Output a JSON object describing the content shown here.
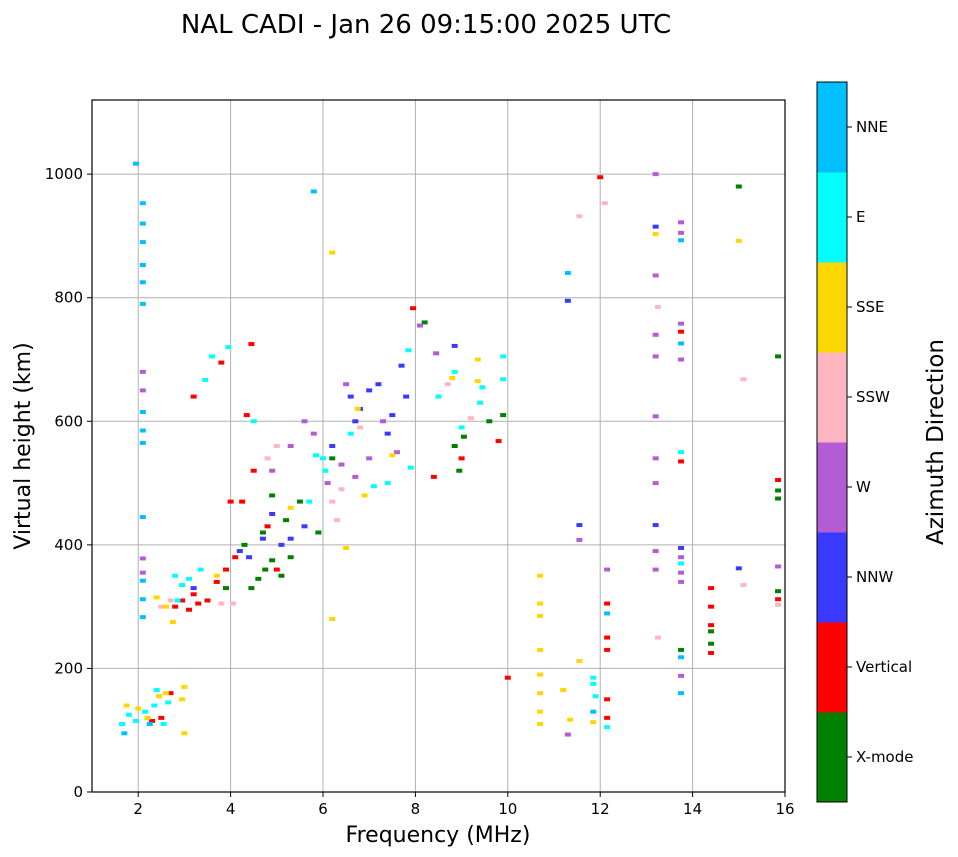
{
  "chart_data": {
    "type": "scatter",
    "title": "NAL CADI - Jan 26 09:15:00 2025 UTC",
    "xlabel": "Frequency (MHz)",
    "ylabel": "Virtual height (km)",
    "xlim": [
      1,
      16
    ],
    "ylim": [
      0,
      1120
    ],
    "xticks": [
      2,
      4,
      6,
      8,
      10,
      12,
      14,
      16
    ],
    "yticks": [
      0,
      200,
      400,
      600,
      800,
      1000
    ],
    "grid": true,
    "colorbar": {
      "label": "Azimuth Direction",
      "categories": [
        {
          "name": "X-mode",
          "color": "#008000"
        },
        {
          "name": "Vertical",
          "color": "#ff0000"
        },
        {
          "name": "NNW",
          "color": "#3a3aff"
        },
        {
          "name": "W",
          "color": "#b45cd6"
        },
        {
          "name": "SSW",
          "color": "#ffb6c1"
        },
        {
          "name": "SSE",
          "color": "#ffd700"
        },
        {
          "name": "E",
          "color": "#00ffff"
        },
        {
          "name": "NNE",
          "color": "#00bfff"
        }
      ]
    },
    "series": [
      {
        "name": "X-mode",
        "points": [
          [
            4.45,
            330
          ],
          [
            4.6,
            345
          ],
          [
            4.75,
            360
          ],
          [
            4.9,
            375
          ],
          [
            5.1,
            350
          ],
          [
            5.3,
            380
          ],
          [
            4.3,
            400
          ],
          [
            4.7,
            420
          ],
          [
            5.2,
            440
          ],
          [
            5.5,
            470
          ],
          [
            4.9,
            480
          ],
          [
            6.2,
            540
          ],
          [
            8.85,
            560
          ],
          [
            8.95,
            520
          ],
          [
            9.05,
            575
          ],
          [
            9.6,
            600
          ],
          [
            9.9,
            610
          ],
          [
            8.2,
            760
          ],
          [
            13.75,
            230
          ],
          [
            15,
            980
          ],
          [
            15.85,
            705
          ],
          [
            15.85,
            475
          ],
          [
            15.85,
            488
          ],
          [
            15.85,
            325
          ],
          [
            5.9,
            420
          ],
          [
            3.9,
            330
          ],
          [
            14.4,
            240
          ],
          [
            14.4,
            260
          ]
        ]
      },
      {
        "name": "Vertical",
        "points": [
          [
            2.8,
            300
          ],
          [
            2.95,
            310
          ],
          [
            3.1,
            295
          ],
          [
            3.3,
            305
          ],
          [
            3.5,
            310
          ],
          [
            3.2,
            320
          ],
          [
            3.7,
            340
          ],
          [
            3.9,
            360
          ],
          [
            4.1,
            380
          ],
          [
            4.25,
            470
          ],
          [
            4.5,
            520
          ],
          [
            4.0,
            470
          ],
          [
            4.35,
            610
          ],
          [
            4.45,
            725
          ],
          [
            3.8,
            695
          ],
          [
            3.2,
            640
          ],
          [
            2.3,
            115
          ],
          [
            2.5,
            120
          ],
          [
            2.7,
            160
          ],
          [
            8.4,
            510
          ],
          [
            9.0,
            540
          ],
          [
            9.8,
            568
          ],
          [
            10.0,
            185
          ],
          [
            12.0,
            995
          ],
          [
            12.15,
            305
          ],
          [
            12.15,
            250
          ],
          [
            12.15,
            230
          ],
          [
            12.15,
            150
          ],
          [
            12.15,
            120
          ],
          [
            13.75,
            535
          ],
          [
            13.75,
            745
          ],
          [
            14.4,
            330
          ],
          [
            14.4,
            300
          ],
          [
            14.4,
            270
          ],
          [
            14.4,
            225
          ],
          [
            15.85,
            505
          ],
          [
            15.85,
            312
          ],
          [
            7.95,
            783
          ],
          [
            5.0,
            360
          ],
          [
            4.8,
            430
          ]
        ]
      },
      {
        "name": "NNW",
        "points": [
          [
            3.2,
            330
          ],
          [
            4.4,
            380
          ],
          [
            4.2,
            390
          ],
          [
            4.7,
            410
          ],
          [
            5.1,
            400
          ],
          [
            5.6,
            430
          ],
          [
            6.6,
            640
          ],
          [
            6.8,
            620
          ],
          [
            7.0,
            650
          ],
          [
            7.2,
            660
          ],
          [
            7.5,
            610
          ],
          [
            7.8,
            640
          ],
          [
            6.7,
            600
          ],
          [
            7.4,
            580
          ],
          [
            11.3,
            795
          ],
          [
            11.55,
            432
          ],
          [
            13.2,
            432
          ],
          [
            13.2,
            915
          ],
          [
            13.75,
            395
          ],
          [
            15.0,
            362
          ],
          [
            4.9,
            450
          ],
          [
            5.3,
            410
          ],
          [
            8.85,
            722
          ],
          [
            7.7,
            690
          ],
          [
            6.2,
            560
          ]
        ]
      },
      {
        "name": "W",
        "points": [
          [
            2.1,
            680
          ],
          [
            2.1,
            650
          ],
          [
            2.1,
            378
          ],
          [
            2.1,
            355
          ],
          [
            5.3,
            560
          ],
          [
            5.6,
            600
          ],
          [
            5.8,
            580
          ],
          [
            6.1,
            500
          ],
          [
            6.4,
            530
          ],
          [
            6.7,
            510
          ],
          [
            7.0,
            540
          ],
          [
            7.3,
            600
          ],
          [
            7.6,
            550
          ],
          [
            4.9,
            520
          ],
          [
            6.5,
            660
          ],
          [
            8.1,
            755
          ],
          [
            8.45,
            710
          ],
          [
            11.3,
            93
          ],
          [
            11.55,
            408
          ],
          [
            12.15,
            360
          ],
          [
            13.2,
            1000
          ],
          [
            13.2,
            836
          ],
          [
            13.2,
            740
          ],
          [
            13.2,
            705
          ],
          [
            13.2,
            608
          ],
          [
            13.2,
            540
          ],
          [
            13.2,
            500
          ],
          [
            13.2,
            390
          ],
          [
            13.2,
            360
          ],
          [
            13.75,
            922
          ],
          [
            13.75,
            905
          ],
          [
            13.75,
            758
          ],
          [
            13.75,
            700
          ],
          [
            13.75,
            380
          ],
          [
            13.75,
            355
          ],
          [
            13.75,
            340
          ],
          [
            13.75,
            188
          ],
          [
            15.85,
            365
          ]
        ]
      },
      {
        "name": "SSW",
        "points": [
          [
            2.5,
            300
          ],
          [
            2.7,
            310
          ],
          [
            6.3,
            440
          ],
          [
            6.2,
            470
          ],
          [
            6.4,
            490
          ],
          [
            5.0,
            560
          ],
          [
            4.8,
            540
          ],
          [
            6.8,
            590
          ],
          [
            8.7,
            660
          ],
          [
            9.2,
            605
          ],
          [
            11.55,
            932
          ],
          [
            12.1,
            953
          ],
          [
            13.25,
            785
          ],
          [
            13.25,
            250
          ],
          [
            15.1,
            668
          ],
          [
            15.1,
            335
          ],
          [
            15.85,
            303
          ],
          [
            3.8,
            305
          ],
          [
            4.05,
            305
          ]
        ]
      },
      {
        "name": "SSE",
        "points": [
          [
            1.75,
            140
          ],
          [
            2.0,
            135
          ],
          [
            2.2,
            120
          ],
          [
            2.45,
            155
          ],
          [
            2.6,
            160
          ],
          [
            2.95,
            150
          ],
          [
            3.0,
            170
          ],
          [
            3.0,
            95
          ],
          [
            2.4,
            315
          ],
          [
            2.6,
            300
          ],
          [
            2.75,
            275
          ],
          [
            6.2,
            873
          ],
          [
            6.2,
            280
          ],
          [
            6.5,
            395
          ],
          [
            6.75,
            620
          ],
          [
            6.9,
            480
          ],
          [
            7.5,
            545
          ],
          [
            8.8,
            670
          ],
          [
            9.35,
            700
          ],
          [
            9.35,
            665
          ],
          [
            10.7,
            350
          ],
          [
            10.7,
            305
          ],
          [
            10.7,
            285
          ],
          [
            10.7,
            230
          ],
          [
            10.7,
            190
          ],
          [
            10.7,
            160
          ],
          [
            10.7,
            130
          ],
          [
            10.7,
            110
          ],
          [
            11.2,
            165
          ],
          [
            11.35,
            117
          ],
          [
            11.55,
            212
          ],
          [
            11.85,
            113
          ],
          [
            13.2,
            903
          ],
          [
            15.0,
            892
          ],
          [
            3.7,
            350
          ],
          [
            5.3,
            460
          ]
        ]
      },
      {
        "name": "E",
        "points": [
          [
            1.65,
            110
          ],
          [
            1.8,
            125
          ],
          [
            1.95,
            115
          ],
          [
            2.15,
            130
          ],
          [
            2.35,
            140
          ],
          [
            2.55,
            110
          ],
          [
            2.65,
            145
          ],
          [
            2.4,
            165
          ],
          [
            2.8,
            350
          ],
          [
            2.95,
            335
          ],
          [
            3.1,
            345
          ],
          [
            2.85,
            310
          ],
          [
            3.35,
            360
          ],
          [
            3.6,
            705
          ],
          [
            3.95,
            720
          ],
          [
            4.5,
            600
          ],
          [
            5.7,
            470
          ],
          [
            5.85,
            545
          ],
          [
            6.0,
            540
          ],
          [
            6.05,
            520
          ],
          [
            6.6,
            580
          ],
          [
            7.1,
            495
          ],
          [
            7.4,
            500
          ],
          [
            7.9,
            525
          ],
          [
            7.85,
            715
          ],
          [
            8.5,
            640
          ],
          [
            8.85,
            680
          ],
          [
            9.0,
            590
          ],
          [
            9.4,
            630
          ],
          [
            9.45,
            655
          ],
          [
            9.9,
            705
          ],
          [
            9.9,
            668
          ],
          [
            11.85,
            185
          ],
          [
            11.85,
            175
          ],
          [
            11.9,
            155
          ],
          [
            12.15,
            105
          ],
          [
            13.75,
            550
          ],
          [
            13.75,
            370
          ],
          [
            3.45,
            667
          ]
        ]
      },
      {
        "name": "NNE",
        "points": [
          [
            1.95,
            1017
          ],
          [
            2.1,
            953
          ],
          [
            2.1,
            920
          ],
          [
            2.1,
            890
          ],
          [
            2.1,
            853
          ],
          [
            2.1,
            825
          ],
          [
            2.1,
            790
          ],
          [
            2.1,
            615
          ],
          [
            2.1,
            585
          ],
          [
            2.1,
            565
          ],
          [
            2.1,
            445
          ],
          [
            2.1,
            342
          ],
          [
            2.1,
            312
          ],
          [
            2.1,
            283
          ],
          [
            5.8,
            972
          ],
          [
            11.3,
            840
          ],
          [
            11.85,
            130
          ],
          [
            12.15,
            289
          ],
          [
            13.75,
            726
          ],
          [
            13.75,
            218
          ],
          [
            13.75,
            160
          ],
          [
            13.75,
            893
          ],
          [
            2.25,
            110
          ],
          [
            1.7,
            95
          ]
        ]
      }
    ]
  }
}
